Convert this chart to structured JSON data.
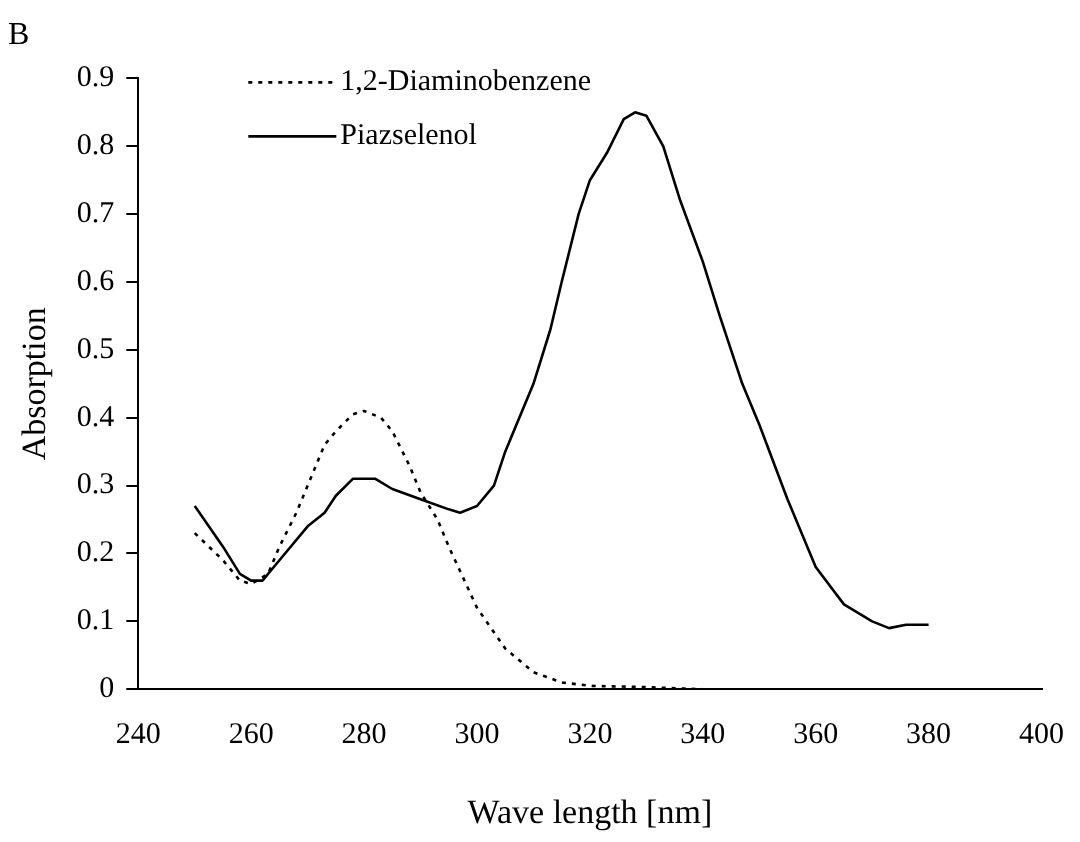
{
  "chart_data": {
    "type": "line",
    "title": "B",
    "xlabel": "Wave length [nm]",
    "ylabel": "Absorption",
    "xlim": [
      240,
      400
    ],
    "xticks": [
      240,
      260,
      280,
      300,
      320,
      340,
      360,
      380,
      400
    ],
    "ylim": [
      0,
      0.9
    ],
    "yticks": [
      0,
      0.1,
      0.2,
      0.3,
      0.4,
      0.5,
      0.6,
      0.7,
      0.8,
      0.9
    ],
    "grid": false,
    "legend": "top left",
    "marker": "none",
    "series": [
      {
        "name": "1,2-Diaminobenzene",
        "color": "#000000",
        "line_style": "dotted",
        "x": [
          250,
          255,
          258,
          260,
          263,
          265,
          268,
          270,
          273,
          275,
          278,
          280,
          283,
          285,
          288,
          290,
          293,
          295,
          300,
          305,
          310,
          315,
          320,
          330,
          340,
          350,
          360,
          370,
          380
        ],
        "values": [
          0.23,
          0.19,
          0.16,
          0.155,
          0.17,
          0.21,
          0.26,
          0.3,
          0.36,
          0.38,
          0.405,
          0.41,
          0.4,
          0.38,
          0.33,
          0.29,
          0.25,
          0.21,
          0.12,
          0.06,
          0.025,
          0.01,
          0.005,
          0.003,
          0,
          0,
          0,
          0,
          0
        ]
      },
      {
        "name": "Piazselenol",
        "color": "#000000",
        "line_style": "solid",
        "x": [
          250,
          255,
          258,
          260,
          262,
          265,
          270,
          273,
          275,
          278,
          282,
          285,
          290,
          295,
          297,
          300,
          303,
          305,
          310,
          313,
          315,
          318,
          320,
          323,
          326,
          328,
          330,
          333,
          336,
          340,
          343,
          347,
          350,
          355,
          360,
          365,
          370,
          373,
          376,
          380
        ],
        "values": [
          0.27,
          0.21,
          0.17,
          0.16,
          0.16,
          0.19,
          0.24,
          0.26,
          0.285,
          0.31,
          0.31,
          0.295,
          0.28,
          0.265,
          0.26,
          0.27,
          0.3,
          0.35,
          0.45,
          0.53,
          0.6,
          0.7,
          0.75,
          0.79,
          0.84,
          0.85,
          0.845,
          0.8,
          0.72,
          0.63,
          0.55,
          0.45,
          0.39,
          0.28,
          0.18,
          0.125,
          0.1,
          0.09,
          0.095,
          0.095
        ]
      }
    ]
  }
}
